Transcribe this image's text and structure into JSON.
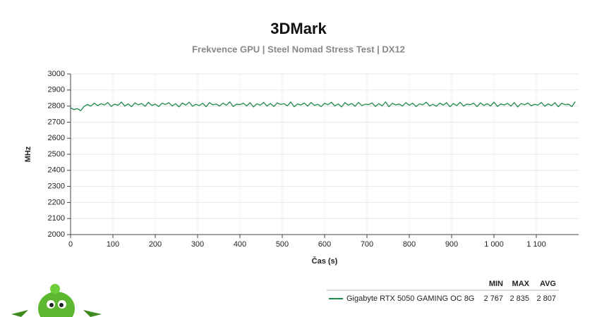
{
  "chart_data": {
    "type": "line",
    "title": "3DMark",
    "subtitle": "Frekvence GPU | Steel Nomad Stress Test | DX12",
    "x_label": "Čas (s)",
    "y_label": "MHz",
    "xlim": [
      0,
      1200
    ],
    "ylim": [
      2000,
      3000
    ],
    "xticks": [
      0,
      100,
      200,
      300,
      400,
      500,
      600,
      700,
      800,
      900,
      {
        "value": 1000,
        "label": "1 000"
      },
      {
        "value": 1100,
        "label": "1 100"
      }
    ],
    "yticks": [
      2000,
      2100,
      2200,
      2300,
      2400,
      2500,
      2600,
      2700,
      2800,
      2900,
      3000
    ],
    "grid": true,
    "x": [
      0,
      8,
      16,
      24,
      32,
      40,
      48,
      56,
      64,
      72,
      80,
      88,
      96,
      104,
      112,
      120,
      128,
      136,
      144,
      152,
      160,
      168,
      176,
      184,
      192,
      200,
      208,
      216,
      224,
      232,
      240,
      248,
      256,
      264,
      272,
      280,
      288,
      296,
      304,
      312,
      320,
      328,
      336,
      344,
      352,
      360,
      368,
      376,
      384,
      392,
      400,
      408,
      416,
      424,
      432,
      440,
      448,
      456,
      464,
      472,
      480,
      488,
      496,
      504,
      512,
      520,
      528,
      536,
      544,
      552,
      560,
      568,
      576,
      584,
      592,
      600,
      608,
      616,
      624,
      632,
      640,
      648,
      656,
      664,
      672,
      680,
      688,
      696,
      704,
      712,
      720,
      728,
      736,
      744,
      752,
      760,
      768,
      776,
      784,
      792,
      800,
      808,
      816,
      824,
      832,
      840,
      848,
      856,
      864,
      872,
      880,
      888,
      896,
      904,
      912,
      920,
      928,
      936,
      944,
      952,
      960,
      968,
      976,
      984,
      992,
      1000,
      1008,
      1016,
      1024,
      1032,
      1040,
      1048,
      1056,
      1064,
      1072,
      1080,
      1088,
      1096,
      1104,
      1112,
      1120,
      1128,
      1136,
      1144,
      1152,
      1160,
      1168,
      1176,
      1184,
      1192
    ],
    "series": [
      {
        "name": "Gigabyte RTX 5050 GAMING OC 8G",
        "color": "#1f8a4c",
        "values": [
          2790,
          2778,
          2784,
          2772,
          2798,
          2810,
          2800,
          2818,
          2803,
          2815,
          2807,
          2822,
          2798,
          2812,
          2805,
          2825,
          2800,
          2814,
          2796,
          2820,
          2808,
          2816,
          2799,
          2823,
          2804,
          2812,
          2797,
          2818,
          2810,
          2821,
          2801,
          2815,
          2795,
          2819,
          2806,
          2824,
          2799,
          2811,
          2803,
          2817,
          2796,
          2822,
          2808,
          2813,
          2800,
          2819,
          2805,
          2826,
          2797,
          2812,
          2809,
          2818,
          2801,
          2821,
          2795,
          2814,
          2806,
          2823,
          2800,
          2816,
          2798,
          2820,
          2810,
          2815,
          2802,
          2825,
          2796,
          2813,
          2807,
          2819,
          2800,
          2822,
          2804,
          2811,
          2797,
          2818,
          2808,
          2824,
          2801,
          2814,
          2795,
          2821,
          2806,
          2816,
          2799,
          2823,
          2803,
          2812,
          2809,
          2820,
          2798,
          2815,
          2802,
          2826,
          2796,
          2817,
          2807,
          2813,
          2800,
          2822,
          2805,
          2818,
          2797,
          2814,
          2808,
          2824,
          2801,
          2811,
          2799,
          2819,
          2806,
          2821,
          2796,
          2816,
          2803,
          2823,
          2800,
          2812,
          2809,
          2818,
          2797,
          2820,
          2804,
          2815,
          2801,
          2824,
          2798,
          2813,
          2807,
          2817,
          2800,
          2822,
          2795,
          2816,
          2808,
          2819,
          2802,
          2811,
          2806,
          2823,
          2799,
          2814,
          2803,
          2821,
          2796,
          2818,
          2809,
          2812,
          2797,
          2828
        ]
      }
    ],
    "summary": {
      "columns": [
        "MIN",
        "MAX",
        "AVG"
      ],
      "values": [
        "2 767",
        "2 835",
        "2 807"
      ]
    }
  }
}
